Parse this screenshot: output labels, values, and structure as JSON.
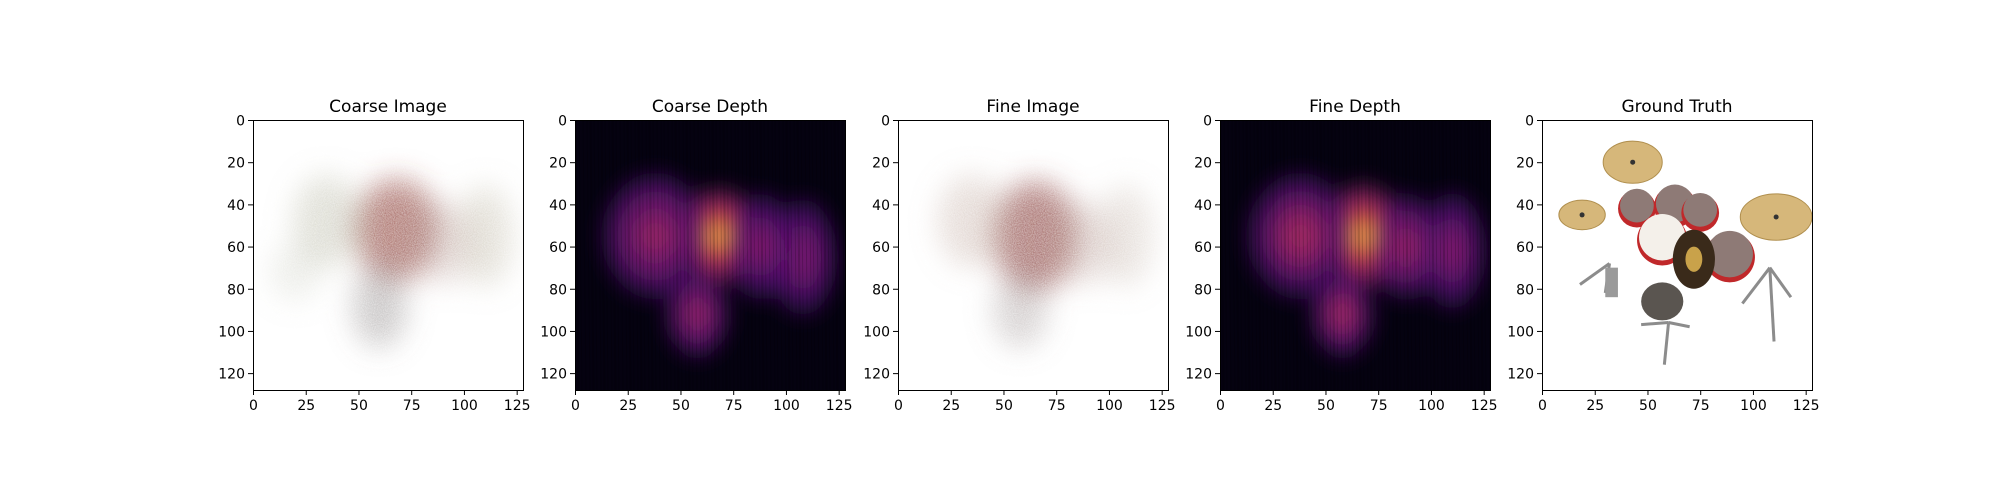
{
  "chart_data": [
    {
      "type": "heatmap",
      "title": "Coarse Image",
      "content": "rgb-render",
      "xticks": [
        "0",
        "25",
        "50",
        "75",
        "100",
        "125"
      ],
      "yticks": [
        "0",
        "20",
        "40",
        "60",
        "80",
        "100",
        "120"
      ],
      "xlim": [
        0,
        128
      ],
      "ylim": [
        128,
        0
      ],
      "grid": false,
      "blobs": [
        {
          "cx": 68,
          "cy": 52,
          "rx": 20,
          "ry": 24,
          "intensity": 0.7,
          "color": "#8a3a32"
        },
        {
          "cx": 35,
          "cy": 48,
          "rx": 16,
          "ry": 22,
          "intensity": 0.35,
          "color": "#9c9a7e"
        },
        {
          "cx": 60,
          "cy": 88,
          "rx": 13,
          "ry": 20,
          "intensity": 0.4,
          "color": "#6e6a6a"
        },
        {
          "cx": 110,
          "cy": 55,
          "rx": 13,
          "ry": 24,
          "intensity": 0.35,
          "color": "#a8a086"
        },
        {
          "cx": 90,
          "cy": 58,
          "rx": 14,
          "ry": 20,
          "intensity": 0.3,
          "color": "#a07a70"
        },
        {
          "cx": 20,
          "cy": 72,
          "rx": 12,
          "ry": 14,
          "intensity": 0.2,
          "color": "#9aa08a"
        }
      ]
    },
    {
      "type": "heatmap",
      "title": "Coarse Depth",
      "content": "depth",
      "colormap": "inferno",
      "xticks": [
        "0",
        "25",
        "50",
        "75",
        "100",
        "125"
      ],
      "yticks": [
        "0",
        "20",
        "40",
        "60",
        "80",
        "100",
        "120"
      ],
      "xlim": [
        0,
        128
      ],
      "ylim": [
        128,
        0
      ],
      "grid": false,
      "blobs": [
        {
          "cx": 68,
          "cy": 55,
          "rx": 16,
          "ry": 20,
          "intensity": 1.0
        },
        {
          "cx": 38,
          "cy": 55,
          "rx": 22,
          "ry": 26,
          "intensity": 0.55
        },
        {
          "cx": 58,
          "cy": 92,
          "rx": 13,
          "ry": 18,
          "intensity": 0.55
        },
        {
          "cx": 108,
          "cy": 65,
          "rx": 14,
          "ry": 24,
          "intensity": 0.45
        },
        {
          "cx": 88,
          "cy": 60,
          "rx": 14,
          "ry": 22,
          "intensity": 0.5
        }
      ]
    },
    {
      "type": "heatmap",
      "title": "Fine Image",
      "content": "rgb-render",
      "xticks": [
        "0",
        "25",
        "50",
        "75",
        "100",
        "125"
      ],
      "yticks": [
        "0",
        "20",
        "40",
        "60",
        "80",
        "100",
        "120"
      ],
      "xlim": [
        0,
        128
      ],
      "ylim": [
        128,
        0
      ],
      "grid": false,
      "blobs": [
        {
          "cx": 65,
          "cy": 55,
          "rx": 20,
          "ry": 26,
          "intensity": 0.75,
          "color": "#8c4440"
        },
        {
          "cx": 35,
          "cy": 48,
          "rx": 16,
          "ry": 22,
          "intensity": 0.35,
          "color": "#b08e84"
        },
        {
          "cx": 58,
          "cy": 90,
          "rx": 13,
          "ry": 18,
          "intensity": 0.35,
          "color": "#7e7474"
        },
        {
          "cx": 108,
          "cy": 55,
          "rx": 13,
          "ry": 24,
          "intensity": 0.3,
          "color": "#b09a8a"
        },
        {
          "cx": 88,
          "cy": 58,
          "rx": 14,
          "ry": 20,
          "intensity": 0.3,
          "color": "#a07a70"
        }
      ]
    },
    {
      "type": "heatmap",
      "title": "Fine Depth",
      "content": "depth",
      "colormap": "inferno",
      "xticks": [
        "0",
        "25",
        "50",
        "75",
        "100",
        "125"
      ],
      "yticks": [
        "0",
        "20",
        "40",
        "60",
        "80",
        "100",
        "120"
      ],
      "xlim": [
        0,
        128
      ],
      "ylim": [
        128,
        0
      ],
      "grid": false,
      "blobs": [
        {
          "cx": 68,
          "cy": 55,
          "rx": 16,
          "ry": 22,
          "intensity": 1.0
        },
        {
          "cx": 38,
          "cy": 55,
          "rx": 22,
          "ry": 26,
          "intensity": 0.6
        },
        {
          "cx": 58,
          "cy": 92,
          "rx": 13,
          "ry": 18,
          "intensity": 0.6
        },
        {
          "cx": 110,
          "cy": 62,
          "rx": 14,
          "ry": 24,
          "intensity": 0.5
        },
        {
          "cx": 88,
          "cy": 60,
          "rx": 14,
          "ry": 22,
          "intensity": 0.55
        }
      ]
    },
    {
      "type": "heatmap",
      "title": "Ground Truth",
      "content": "photo-drum-kit",
      "xticks": [
        "0",
        "25",
        "50",
        "75",
        "100",
        "125"
      ],
      "yticks": [
        "0",
        "20",
        "40",
        "60",
        "80",
        "100",
        "120"
      ],
      "xlim": [
        0,
        128
      ],
      "ylim": [
        128,
        0
      ],
      "grid": false,
      "colors": {
        "cymbal": "#d6b77a",
        "drum": "#c0282a",
        "drum_head": "#f4f0ea",
        "hardware": "#8c8c8c",
        "floor_tom": "#5a5550"
      }
    }
  ]
}
